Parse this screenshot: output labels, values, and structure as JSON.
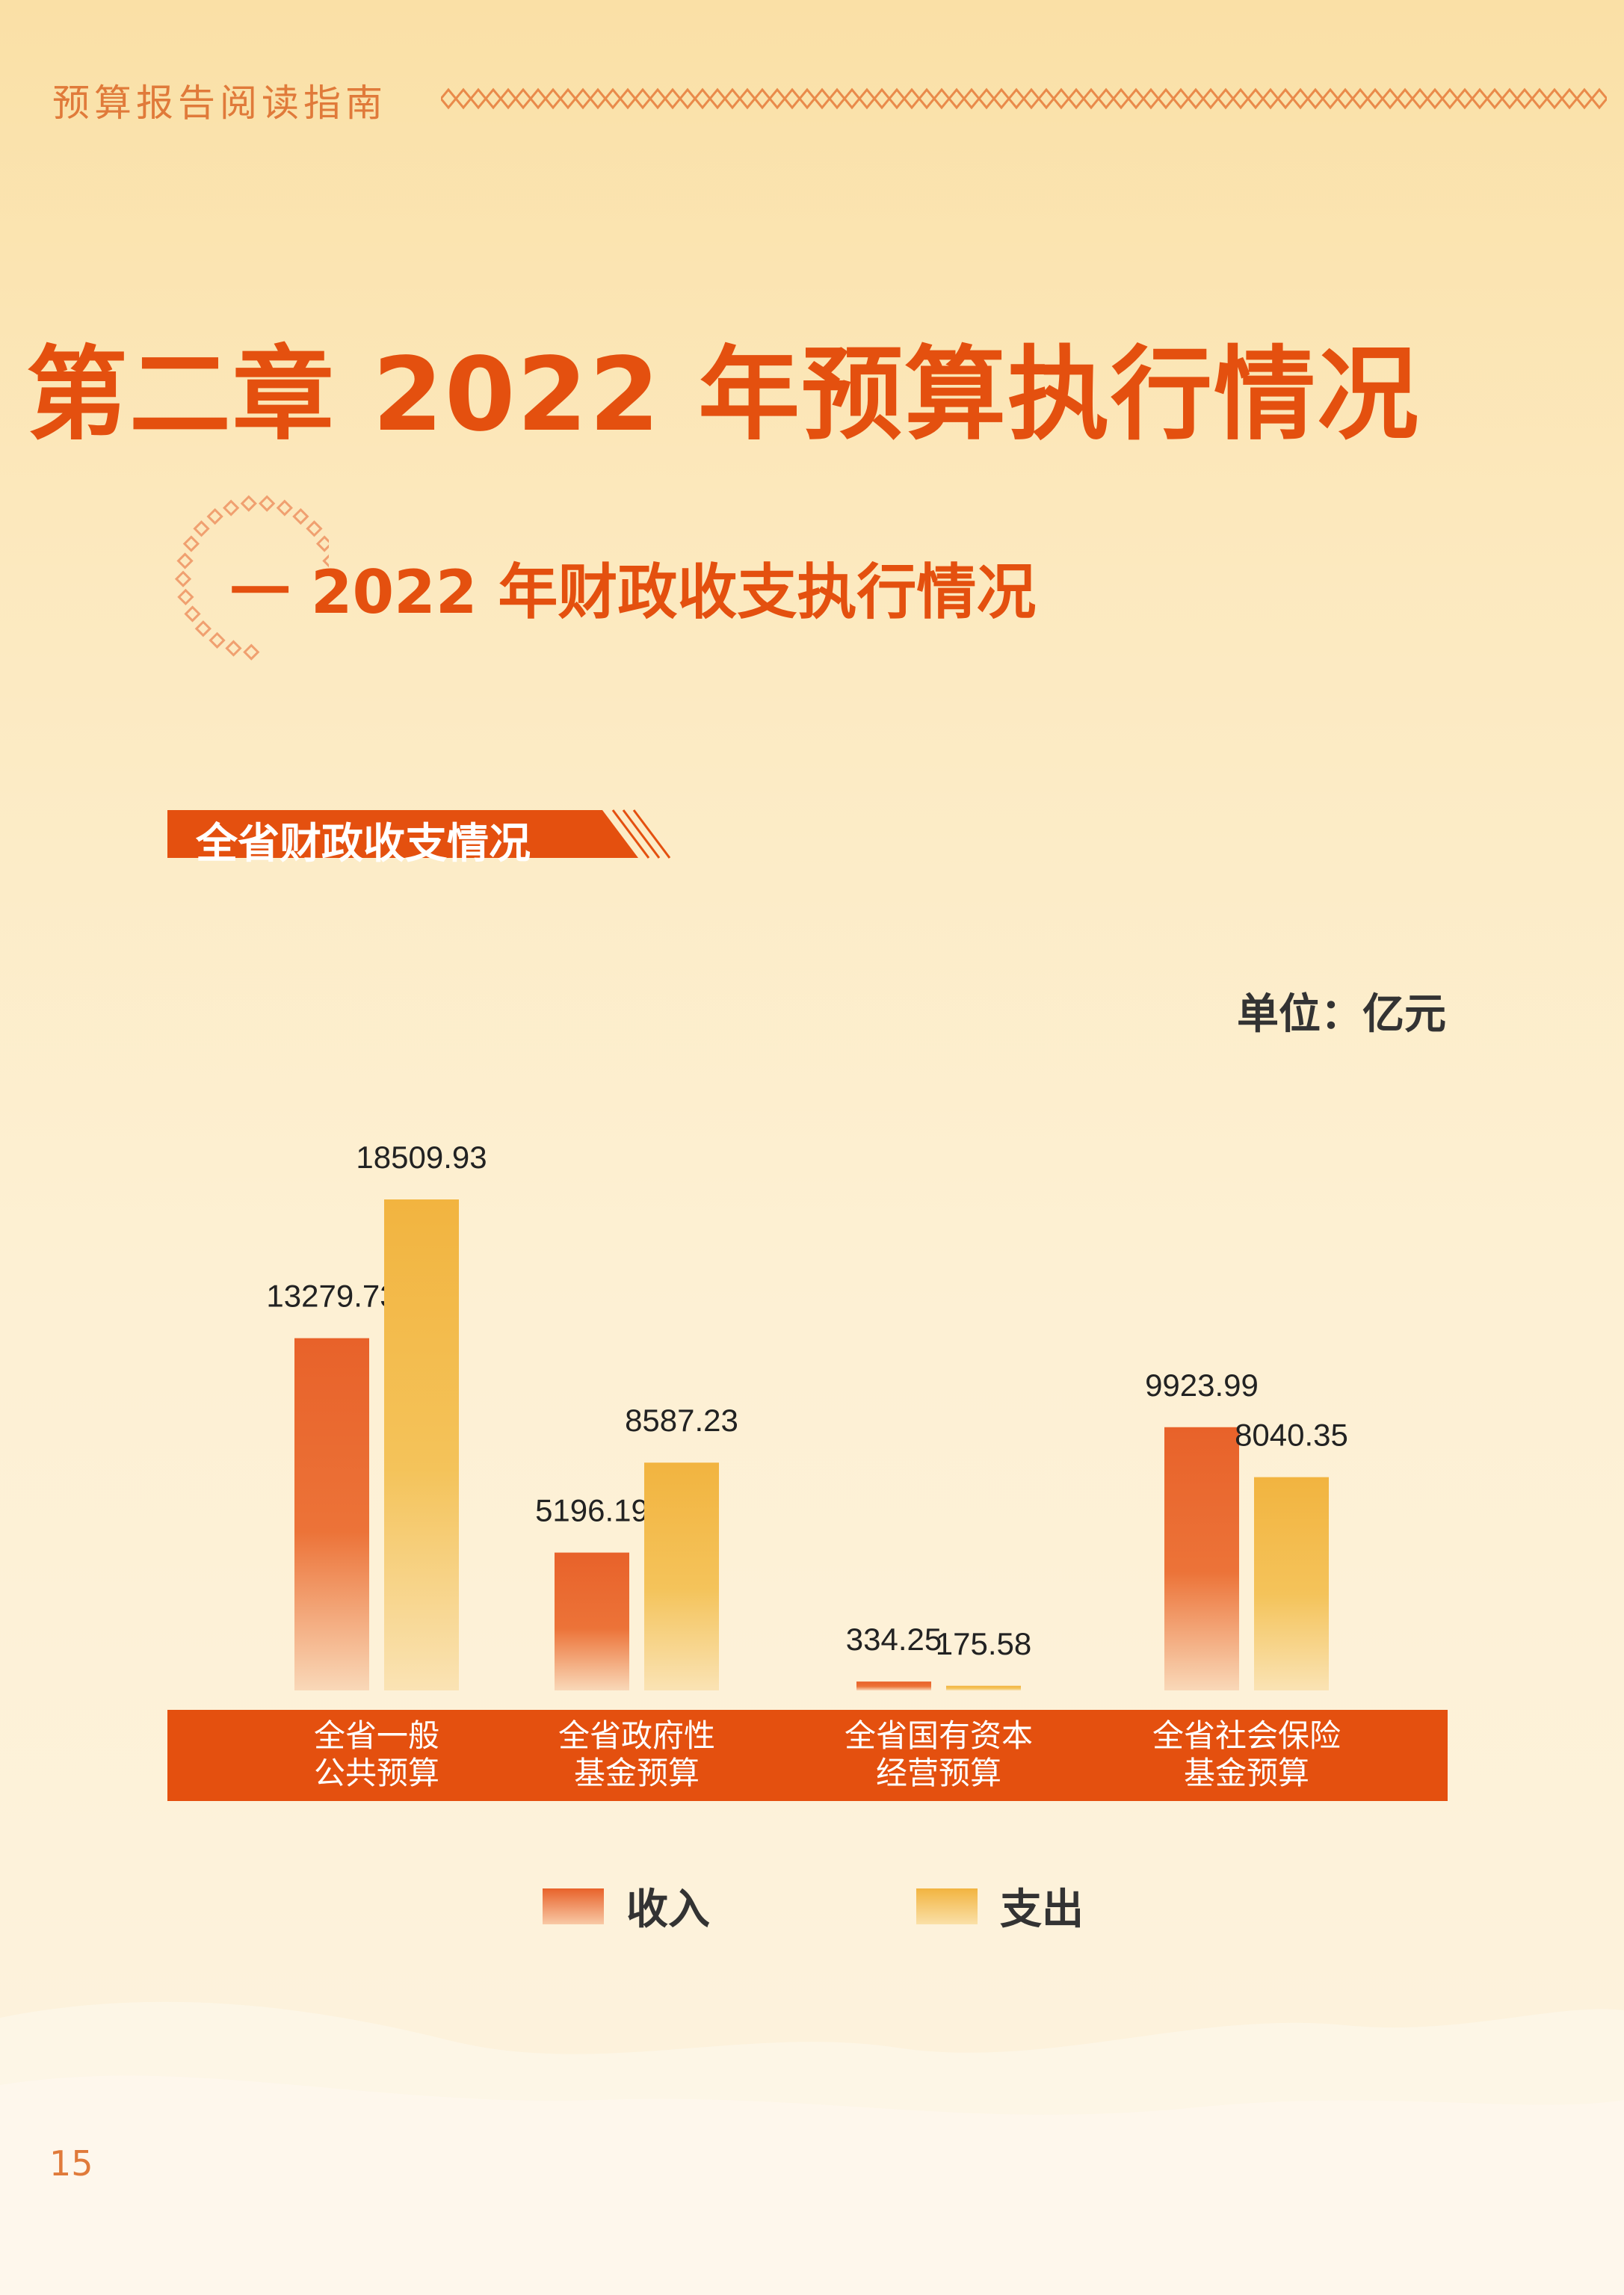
{
  "header": {
    "guide_title": "预算报告阅读指南"
  },
  "chapter": {
    "title": "第二章  2022 年预算执行情况"
  },
  "section": {
    "title": "一  2022 年财政收支执行情况"
  },
  "page": {
    "number": "15"
  },
  "colors": {
    "accent": "#e4500f",
    "income": "#e8622a",
    "expenditure": "#f2b440"
  },
  "chart_data": {
    "type": "bar",
    "title": "全省财政收支情况",
    "unit_label": "单位：亿元",
    "categories": [
      {
        "line1": "全省一般",
        "line2": "公共预算"
      },
      {
        "line1": "全省政府性",
        "line2": "基金预算"
      },
      {
        "line1": "全省国有资本",
        "line2": "经营预算"
      },
      {
        "line1": "全省社会保险",
        "line2": "基金预算"
      }
    ],
    "series": [
      {
        "name": "收入",
        "values": [
          13279.73,
          5196.19,
          334.25,
          9923.99
        ],
        "labels": [
          "13279.73",
          "5196.19",
          "334.25",
          "9923.99"
        ]
      },
      {
        "name": "支出",
        "values": [
          18509.93,
          8587.23,
          175.58,
          8040.35
        ],
        "labels": [
          "18509.93",
          "8587.23",
          "175.58",
          "8040.35"
        ]
      }
    ],
    "ylim": [
      0,
      18509.93
    ],
    "legend": "bottom"
  }
}
